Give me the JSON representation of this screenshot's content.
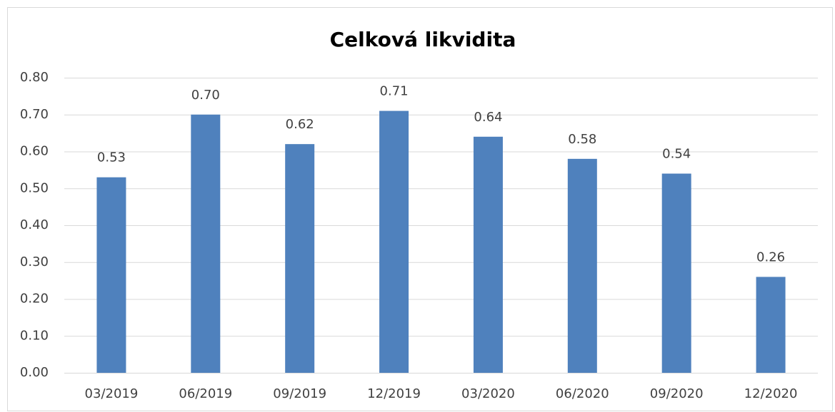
{
  "chart_data": {
    "type": "bar",
    "title": "Celková likvidita",
    "categories": [
      "03/2019",
      "06/2019",
      "09/2019",
      "12/2019",
      "03/2020",
      "06/2020",
      "09/2020",
      "12/2020"
    ],
    "values": [
      0.53,
      0.7,
      0.62,
      0.71,
      0.64,
      0.58,
      0.54,
      0.26
    ],
    "value_labels": [
      "0.53",
      "0.70",
      "0.62",
      "0.71",
      "0.64",
      "0.58",
      "0.54",
      "0.26"
    ],
    "color": "#4f81bd",
    "ylim": [
      0,
      0.8
    ],
    "yticks": [
      {
        "value": 0,
        "label": "0.00"
      },
      {
        "value": 0.1,
        "label": "0.10"
      },
      {
        "value": 0.2,
        "label": "0.20"
      },
      {
        "value": 0.3,
        "label": "0.30"
      },
      {
        "value": 0.4,
        "label": "0.40"
      },
      {
        "value": 0.5,
        "label": "0.50"
      },
      {
        "value": 0.6,
        "label": "0.60"
      },
      {
        "value": 0.7,
        "label": "0.70"
      },
      {
        "value": 0.8,
        "label": "0.80"
      }
    ],
    "grid": true
  }
}
